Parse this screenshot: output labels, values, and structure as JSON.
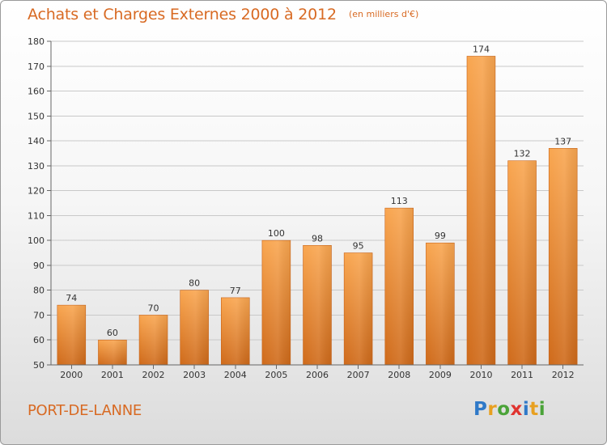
{
  "header": {
    "title": "Achats et Charges Externes 2000 à 2012",
    "subtitle": "(en milliers d'€)"
  },
  "footer": {
    "location": "PORT-DE-LANNE",
    "logo": {
      "text": "Proxiti",
      "letters": [
        {
          "ch": "P",
          "color": "#2f79c8"
        },
        {
          "ch": "r",
          "color": "#e8a020"
        },
        {
          "ch": "o",
          "color": "#4aa338"
        },
        {
          "ch": "x",
          "color": "#e0332f"
        },
        {
          "ch": "i",
          "color": "#2f79c8"
        },
        {
          "ch": "t",
          "color": "#e8a020"
        },
        {
          "ch": "i",
          "color": "#4aa338"
        }
      ]
    }
  },
  "colors": {
    "accent": "#d86a23",
    "bar_light": "#f7a24d",
    "bar_dark": "#d46e1c",
    "grid": "#c8c8c8"
  },
  "chart_data": {
    "type": "bar",
    "title": "Achats et Charges Externes 2000 à 2012",
    "subtitle": "(en milliers d'€)",
    "categories": [
      "2000",
      "2001",
      "2002",
      "2003",
      "2004",
      "2005",
      "2006",
      "2007",
      "2008",
      "2009",
      "2010",
      "2011",
      "2012"
    ],
    "values": [
      74,
      60,
      70,
      80,
      77,
      100,
      98,
      95,
      113,
      99,
      174,
      132,
      137
    ],
    "data_labels": [
      "74",
      "60",
      "70",
      "80",
      "77",
      "100",
      "98",
      "95",
      "113",
      "99",
      "174",
      "132",
      "137"
    ],
    "ylim": [
      50,
      180
    ],
    "yticks": [
      50,
      60,
      70,
      80,
      90,
      100,
      110,
      120,
      130,
      140,
      150,
      160,
      170,
      180
    ],
    "xlabel": "",
    "ylabel": "",
    "grid": true,
    "legend": "none"
  }
}
